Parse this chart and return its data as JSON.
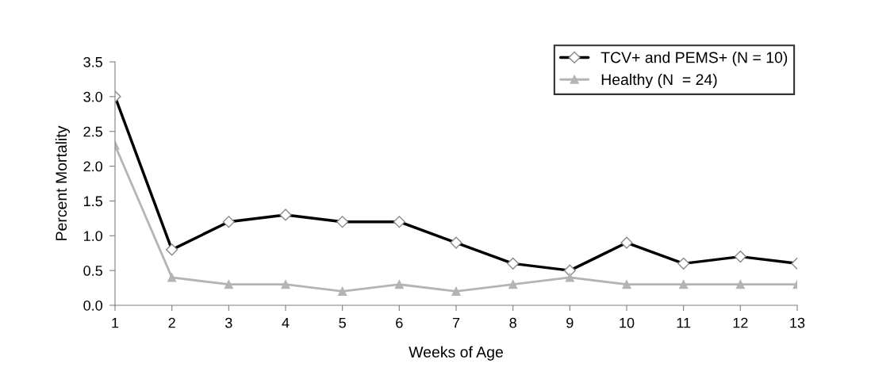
{
  "chart_data": {
    "type": "line",
    "xlabel": "Weeks of Age",
    "ylabel": "Percent Mortality",
    "x": [
      1,
      2,
      3,
      4,
      5,
      6,
      7,
      8,
      9,
      10,
      11,
      12,
      13
    ],
    "xlim": [
      1,
      13
    ],
    "xticks": [
      1,
      2,
      3,
      4,
      5,
      6,
      7,
      8,
      9,
      10,
      11,
      12,
      13
    ],
    "ylim": [
      0,
      3.5
    ],
    "yticks": [
      {
        "value": 0,
        "label": "0.0"
      },
      {
        "value": 0.5,
        "label": "0.5"
      },
      {
        "value": 1,
        "label": "1.0"
      },
      {
        "value": 1.5,
        "label": "1.5"
      },
      {
        "value": 2,
        "label": "2.0"
      },
      {
        "value": 2.5,
        "label": "2.5"
      },
      {
        "value": 3,
        "label": "3.0"
      },
      {
        "value": 3.5,
        "label": "3.5"
      }
    ],
    "grid": false,
    "legend": "top right",
    "line_style": "solid",
    "series": [
      {
        "name": "TCV+ and PEMS+ (N = 10)",
        "color": "#000000",
        "marker": "diamond",
        "values": [
          3.0,
          0.8,
          1.2,
          1.3,
          1.2,
          1.2,
          0.9,
          0.6,
          0.5,
          0.9,
          0.6,
          0.7,
          0.6
        ]
      },
      {
        "name": "Healthy (N  = 24)",
        "color": "#b4b4b4",
        "marker": "triangle",
        "values": [
          2.3,
          0.4,
          0.3,
          0.3,
          0.2,
          0.3,
          0.2,
          0.3,
          0.4,
          0.3,
          0.3,
          0.3,
          0.3
        ]
      }
    ]
  }
}
